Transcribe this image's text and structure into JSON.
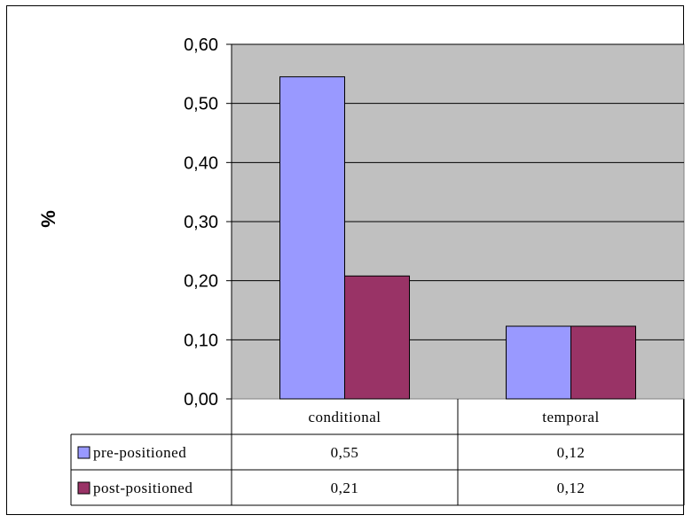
{
  "chart_data": {
    "type": "bar",
    "title": "",
    "xlabel": "",
    "ylabel": "%",
    "ylim": [
      0,
      0.6
    ],
    "yticks": [
      0,
      0.1,
      0.2,
      0.3,
      0.4,
      0.5,
      0.6
    ],
    "ytick_labels": [
      "0,00",
      "0,10",
      "0,20",
      "0,30",
      "0,40",
      "0,50",
      "0,60"
    ],
    "categories": [
      "conditional",
      "temporal"
    ],
    "series": [
      {
        "name": "pre-positioned",
        "values": [
          0.545,
          0.123
        ],
        "labels": [
          "0,55",
          "0,12"
        ],
        "color": "#9999ff"
      },
      {
        "name": "post-positioned",
        "values": [
          0.208,
          0.123
        ],
        "labels": [
          "0,21",
          "0,12"
        ],
        "color": "#993366"
      }
    ],
    "plot_background": "#c0c0c0",
    "grid": true,
    "legend": "data-table"
  }
}
